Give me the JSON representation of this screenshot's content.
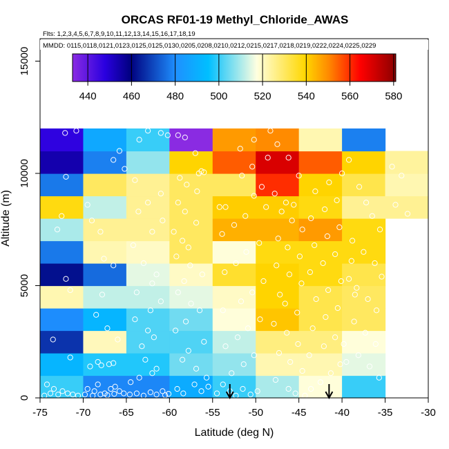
{
  "chart_data": {
    "type": "heatmap",
    "title": "ORCAS RF01-19 Methyl_Chloride_AWAS",
    "flights_label": "Flts: 1,2,3,4,5,6,7,8,9,10,11,12,13,14,15,16,17,18,19",
    "dates_label": "MMDD: 0115,0118,0121,0123,0125,0125,0130,0205,0208,0210,0212,0215,0217,0218,0219,0222,0224,0225,0229",
    "xlabel": "Latitude (deg N)",
    "ylabel": "Altitude (m)",
    "xlim": [
      -75,
      -30
    ],
    "ylim": [
      0,
      16000
    ],
    "x_ticks": [
      "-75",
      "-70",
      "-65",
      "-60",
      "-55",
      "-50",
      "-45",
      "-40",
      "-35",
      "-30"
    ],
    "y_ticks": [
      "0",
      "5000",
      "10000",
      "15000"
    ],
    "colorbar": {
      "min": 433,
      "max": 581,
      "ticks": [
        "440",
        "460",
        "480",
        "500",
        "520",
        "540",
        "560",
        "580"
      ]
    },
    "lat_bin_edges": [
      -75,
      -70,
      -65,
      -60,
      -55,
      -50,
      -45,
      -40,
      -35
    ],
    "alt_bin_edges": [
      0,
      1000,
      2000,
      3000,
      4000,
      5000,
      6000,
      7000,
      8000,
      9000,
      10000,
      11000,
      12000
    ],
    "values": [
      [
        500,
        479,
        479,
        489,
        500,
        510,
        518,
        500
      ],
      [
        492,
        498,
        498,
        505,
        508,
        522,
        522,
        515
      ],
      [
        467,
        521,
        502,
        502,
        512,
        527,
        527,
        518
      ],
      [
        480,
        492,
        502,
        505,
        518,
        542,
        532,
        530
      ],
      [
        522,
        512,
        512,
        515,
        520,
        540,
        532,
        530
      ],
      [
        462,
        475,
        515,
        520,
        535,
        540,
        538,
        532
      ],
      [
        477,
        522,
        520,
        530,
        518,
        538,
        538,
        538
      ],
      [
        510,
        525,
        525,
        530,
        545,
        545,
        548,
        538
      ],
      [
        538,
        512,
        525,
        530,
        541,
        541,
        538,
        525
      ],
      [
        477,
        530,
        525,
        530,
        530,
        560,
        540,
        532
      ],
      [
        454,
        478,
        508,
        540,
        555,
        570,
        555,
        540,
        null
      ],
      [
        447,
        488,
        500,
        432,
        548,
        550,
        522,
        478,
        null
      ]
    ],
    "last_column_x_range": [
      -40,
      -30
    ],
    "arrow_markers_lat": [
      -53,
      -41.5
    ],
    "points": [
      [
        -71.5,
        1800
      ],
      [
        -73.5,
        2600
      ],
      [
        -72,
        9850
      ],
      [
        -73,
        7500
      ],
      [
        -72.5,
        8100
      ],
      [
        -72.1,
        11800
      ],
      [
        -70.8,
        11900
      ],
      [
        -74.2,
        600
      ],
      [
        -73.8,
        200
      ],
      [
        -74.5,
        100
      ],
      [
        -72.9,
        150
      ],
      [
        -72.4,
        300
      ],
      [
        -71.8,
        200
      ],
      [
        -71.2,
        150
      ],
      [
        -70.6,
        100
      ],
      [
        -73.4,
        400
      ],
      [
        -71.5,
        4800
      ],
      [
        -72,
        5300
      ],
      [
        -69.5,
        8600
      ],
      [
        -69,
        7900
      ],
      [
        -68,
        7400
      ],
      [
        -67.6,
        6200
      ],
      [
        -66.5,
        5900
      ],
      [
        -67.8,
        4600
      ],
      [
        -68.5,
        3700
      ],
      [
        -67.2,
        3100
      ],
      [
        -66,
        2600
      ],
      [
        -68.3,
        1600
      ],
      [
        -69.2,
        1400
      ],
      [
        -67.9,
        1450
      ],
      [
        -67,
        1500
      ],
      [
        -66.5,
        1550
      ],
      [
        -69.5,
        400
      ],
      [
        -68.7,
        300
      ],
      [
        -68.3,
        600
      ],
      [
        -67.5,
        200
      ],
      [
        -66.8,
        400
      ],
      [
        -66.3,
        500
      ],
      [
        -65.8,
        300
      ],
      [
        -65.3,
        200
      ],
      [
        -69.8,
        150
      ],
      [
        -68.9,
        100
      ],
      [
        -68,
        150
      ],
      [
        -67.2,
        120
      ],
      [
        -66.4,
        180
      ],
      [
        -64.6,
        150
      ],
      [
        -63.8,
        200
      ],
      [
        -63,
        100
      ],
      [
        -62.2,
        250
      ],
      [
        -61.5,
        150
      ],
      [
        -60.8,
        300
      ],
      [
        -60.5,
        120
      ],
      [
        -60.1,
        180
      ],
      [
        -64.5,
        700
      ],
      [
        -63.5,
        900
      ],
      [
        -62,
        1100
      ],
      [
        -61.5,
        1300
      ],
      [
        -62.8,
        1700
      ],
      [
        -63.2,
        2300
      ],
      [
        -61.8,
        2700
      ],
      [
        -62.5,
        3000
      ],
      [
        -64,
        3500
      ],
      [
        -62.2,
        3900
      ],
      [
        -61,
        4300
      ],
      [
        -63.8,
        4700
      ],
      [
        -62,
        5100
      ],
      [
        -61.5,
        5500
      ],
      [
        -63,
        6000
      ],
      [
        -64.2,
        6800
      ],
      [
        -62,
        7400
      ],
      [
        -60.8,
        7900
      ],
      [
        -63.6,
        8300
      ],
      [
        -62.5,
        8700
      ],
      [
        -61,
        9100
      ],
      [
        -64,
        9700
      ],
      [
        -65.2,
        10200
      ],
      [
        -66.5,
        10600
      ],
      [
        -65.8,
        11000
      ],
      [
        -63.5,
        11500
      ],
      [
        -62.5,
        11900
      ],
      [
        -61,
        11800
      ],
      [
        -60.2,
        11700
      ],
      [
        -59,
        11700
      ],
      [
        -58.2,
        11600
      ],
      [
        -57,
        10900
      ],
      [
        -56.3,
        10100
      ],
      [
        -56,
        10050
      ],
      [
        -56.6,
        10000
      ],
      [
        -58.8,
        9800
      ],
      [
        -58,
        9500
      ],
      [
        -56.8,
        9200
      ],
      [
        -59,
        8700
      ],
      [
        -58.2,
        8300
      ],
      [
        -56.9,
        7800
      ],
      [
        -59.5,
        7400
      ],
      [
        -58.5,
        7000
      ],
      [
        -57.8,
        6700
      ],
      [
        -59.2,
        6300
      ],
      [
        -57.6,
        5900
      ],
      [
        -56.2,
        5500
      ],
      [
        -58.3,
        5200
      ],
      [
        -59,
        4700
      ],
      [
        -57.5,
        4200
      ],
      [
        -56.5,
        3900
      ],
      [
        -58.1,
        3400
      ],
      [
        -59.3,
        3000
      ],
      [
        -56,
        2500
      ],
      [
        -57.8,
        2100
      ],
      [
        -58.5,
        1700
      ],
      [
        -56.9,
        1300
      ],
      [
        -55.7,
        900
      ],
      [
        -57.1,
        600
      ],
      [
        -58.4,
        200
      ],
      [
        -59.1,
        400
      ],
      [
        -56.3,
        300
      ],
      [
        -55.5,
        500
      ],
      [
        -54.5,
        200
      ],
      [
        -53.8,
        600
      ],
      [
        -53,
        300
      ],
      [
        -52.3,
        100
      ],
      [
        -51.5,
        400
      ],
      [
        -50.6,
        150
      ],
      [
        -49.8,
        300
      ],
      [
        -52.8,
        1100
      ],
      [
        -51.4,
        1500
      ],
      [
        -50.2,
        1900
      ],
      [
        -53.5,
        2300
      ],
      [
        -52.1,
        2700
      ],
      [
        -50.9,
        3100
      ],
      [
        -49.5,
        3500
      ],
      [
        -53.8,
        3900
      ],
      [
        -51.7,
        4300
      ],
      [
        -50.4,
        4700
      ],
      [
        -49.1,
        5200
      ],
      [
        -53.6,
        5600
      ],
      [
        -52.3,
        6000
      ],
      [
        -51.1,
        6500
      ],
      [
        -49.6,
        6900
      ],
      [
        -53.9,
        7300
      ],
      [
        -52.5,
        7700
      ],
      [
        -51.2,
        8100
      ],
      [
        -48.8,
        8500
      ],
      [
        -54.2,
        8500
      ],
      [
        -53.5,
        8500
      ],
      [
        -50.2,
        9000
      ],
      [
        -49.3,
        9400
      ],
      [
        -51.6,
        9900
      ],
      [
        -50.4,
        10300
      ],
      [
        -48.6,
        10700
      ],
      [
        -51.8,
        11100
      ],
      [
        -50.2,
        11500
      ],
      [
        -48.3,
        11900
      ],
      [
        -47.5,
        11300
      ],
      [
        -46.2,
        10700
      ],
      [
        -45,
        9900
      ],
      [
        -47.8,
        9100
      ],
      [
        -46.5,
        8700
      ],
      [
        -45.6,
        8600
      ],
      [
        -47,
        8300
      ],
      [
        -45.8,
        7900
      ],
      [
        -44.6,
        7500
      ],
      [
        -47.4,
        7100
      ],
      [
        -46.3,
        6700
      ],
      [
        -44.9,
        6300
      ],
      [
        -47.6,
        5900
      ],
      [
        -46.1,
        5500
      ],
      [
        -44.7,
        5100
      ],
      [
        -47.2,
        4600
      ],
      [
        -46.6,
        4200
      ],
      [
        -45.2,
        3800
      ],
      [
        -47.9,
        3300
      ],
      [
        -46.4,
        2900
      ],
      [
        -45.1,
        2400
      ],
      [
        -47.3,
        2000
      ],
      [
        -46,
        1600
      ],
      [
        -44.6,
        1200
      ],
      [
        -47.7,
        800
      ],
      [
        -46.2,
        400
      ],
      [
        -45.4,
        200
      ],
      [
        -44.3,
        100
      ],
      [
        -43.6,
        400
      ],
      [
        -42.5,
        700
      ],
      [
        -41.3,
        1100
      ],
      [
        -40.2,
        1500
      ],
      [
        -43.8,
        1900
      ],
      [
        -42.1,
        2300
      ],
      [
        -40.8,
        2700
      ],
      [
        -43.4,
        3100
      ],
      [
        -41.9,
        3600
      ],
      [
        -40.5,
        4000
      ],
      [
        -43,
        4400
      ],
      [
        -41.6,
        4800
      ],
      [
        -40.1,
        5200
      ],
      [
        -43.7,
        5600
      ],
      [
        -42.2,
        6000
      ],
      [
        -40.8,
        6400
      ],
      [
        -43.2,
        6800
      ],
      [
        -41.7,
        7200
      ],
      [
        -40.3,
        7600
      ],
      [
        -43.6,
        8000
      ],
      [
        -42,
        8400
      ],
      [
        -40.6,
        8800
      ],
      [
        -43.1,
        9200
      ],
      [
        -41.5,
        9600
      ],
      [
        -40,
        10000
      ],
      [
        -39.2,
        10600
      ],
      [
        -38,
        9400
      ],
      [
        -37.2,
        8700
      ],
      [
        -36.5,
        8100
      ],
      [
        -35.6,
        7500
      ],
      [
        -38.8,
        7000
      ],
      [
        -37.5,
        6500
      ],
      [
        -36.2,
        6000
      ],
      [
        -35.4,
        5400
      ],
      [
        -38.3,
        4900
      ],
      [
        -37,
        4400
      ],
      [
        -36,
        3900
      ],
      [
        -38.6,
        3400
      ],
      [
        -37.3,
        2900
      ],
      [
        -36.1,
        2400
      ],
      [
        -38.1,
        1900
      ],
      [
        -36.8,
        1400
      ],
      [
        -35.7,
        900
      ],
      [
        -34.2,
        10300
      ],
      [
        -33.1,
        9900
      ],
      [
        -32.4,
        8200
      ],
      [
        -33.8,
        8600
      ],
      [
        -39.5,
        1600
      ],
      [
        -39.8,
        2400
      ],
      [
        -38.5,
        4600
      ],
      [
        -39.2,
        5300
      ],
      [
        -38.9,
        6100
      ]
    ]
  }
}
